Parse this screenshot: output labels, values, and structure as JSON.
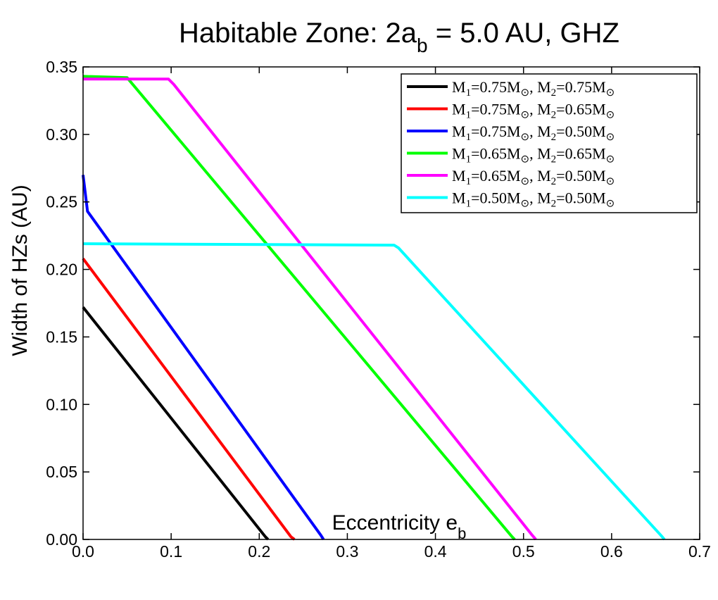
{
  "chart_data": {
    "type": "line",
    "title": {
      "main": "Habitable Zone: 2a",
      "sub": "b",
      "rest": " = 5.0 AU, GHZ"
    },
    "xlabel": {
      "main": "Eccentricity e",
      "sub": "b"
    },
    "ylabel": "Width of HZs (AU)",
    "xlim": [
      0,
      0.7
    ],
    "ylim": [
      0,
      0.35
    ],
    "x_ticks": [
      0,
      0.1,
      0.2,
      0.3,
      0.4,
      0.5,
      0.6,
      0.7
    ],
    "x_tick_labels": [
      "0.0",
      "0.1",
      "0.2",
      "0.3",
      "0.4",
      "0.5",
      "0.6",
      "0.7"
    ],
    "y_ticks": [
      0,
      0.05,
      0.1,
      0.15,
      0.2,
      0.25,
      0.3,
      0.35
    ],
    "y_tick_labels": [
      "0.00",
      "0.05",
      "0.10",
      "0.15",
      "0.20",
      "0.25",
      "0.30",
      "0.35"
    ],
    "grid": false,
    "legend_position": "top-right",
    "series": [
      {
        "name": "M1=0.75M⊙, M2=0.75M⊙",
        "m1": "0.75",
        "m2": "0.75",
        "color": "#000000",
        "x": [
          0,
          0.207,
          0.21
        ],
        "y": [
          0.172,
          0.002,
          0
        ]
      },
      {
        "name": "M1=0.75M⊙, M2=0.65M⊙",
        "m1": "0.75",
        "m2": "0.65",
        "color": "#ff0000",
        "x": [
          0,
          0.236,
          0.24
        ],
        "y": [
          0.208,
          0.002,
          0
        ]
      },
      {
        "name": "M1=0.75M⊙, M2=0.50M⊙",
        "m1": "0.75",
        "m2": "0.50",
        "color": "#0000ff",
        "x": [
          0,
          0.005,
          0.27,
          0.273
        ],
        "y": [
          0.27,
          0.243,
          0.003,
          0
        ]
      },
      {
        "name": "M1=0.65M⊙, M2=0.65M⊙",
        "m1": "0.65",
        "m2": "0.65",
        "color": "#00ff00",
        "x": [
          0,
          0.05,
          0.487,
          0.49
        ],
        "y": [
          0.343,
          0.342,
          0.002,
          0
        ]
      },
      {
        "name": "M1=0.65M⊙, M2=0.50M⊙",
        "m1": "0.65",
        "m2": "0.50",
        "color": "#ff00ff",
        "x": [
          0,
          0.097,
          0.103,
          0.51,
          0.514
        ],
        "y": [
          0.341,
          0.341,
          0.337,
          0.003,
          0
        ]
      },
      {
        "name": "M1=0.50M⊙, M2=0.50M⊙",
        "m1": "0.50",
        "m2": "0.50",
        "color": "#00ffff",
        "x": [
          0,
          0.353,
          0.358,
          0.656,
          0.66
        ],
        "y": [
          0.219,
          0.218,
          0.216,
          0.003,
          0
        ]
      }
    ]
  }
}
